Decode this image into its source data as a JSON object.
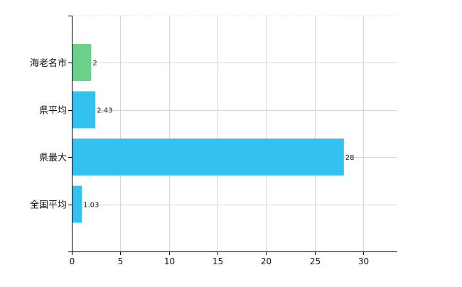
{
  "chart_data": {
    "type": "bar",
    "orientation": "horizontal",
    "categories": [
      "海老名市",
      "県平均",
      "県最大",
      "全国平均"
    ],
    "values": [
      2,
      2.43,
      28,
      1.03
    ],
    "data_labels": [
      "2",
      "2.43",
      "28",
      "1.03"
    ],
    "x_ticks": [
      "0",
      "5",
      "10",
      "15",
      "20",
      "25",
      "30"
    ],
    "xlim": [
      0,
      33.5
    ],
    "grid": true,
    "legend": "none",
    "colors": {
      "highlight": "#6dd08a",
      "default": "#33c1f2",
      "grid": "#d6d6d6",
      "axis": "#000000"
    },
    "highlight_category": "海老名市"
  }
}
